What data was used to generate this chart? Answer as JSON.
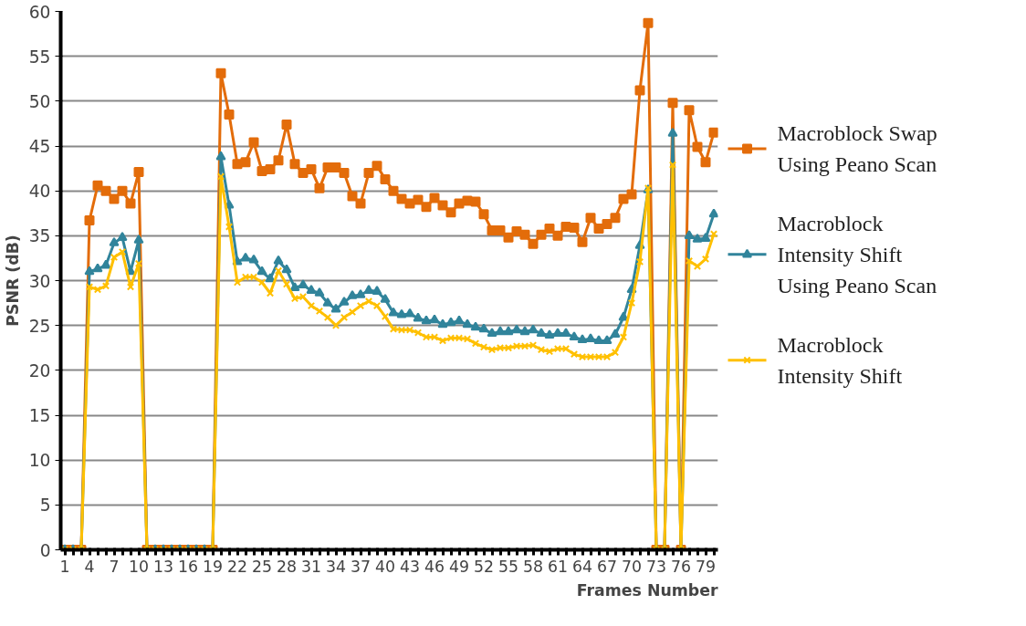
{
  "chart_data": {
    "type": "line",
    "xlabel": "Frames Number",
    "ylabel": "PSNR (dB)",
    "categories": [
      "1",
      null,
      null,
      "4",
      null,
      null,
      "7",
      null,
      null,
      "10",
      null,
      null,
      "13",
      null,
      null,
      "16",
      null,
      null,
      "19",
      null,
      null,
      "22",
      null,
      null,
      "25",
      null,
      null,
      "28",
      null,
      null,
      "31",
      null,
      null,
      "34",
      null,
      null,
      "37",
      null,
      null,
      "40",
      null,
      null,
      "43",
      null,
      null,
      "46",
      null,
      null,
      "49",
      null,
      null,
      "52",
      null,
      null,
      "55",
      null,
      null,
      "58",
      null,
      null,
      "61",
      null,
      null,
      "64",
      null,
      null,
      "67",
      null,
      null,
      "70",
      null,
      null,
      "73",
      null,
      null,
      "76",
      null,
      null,
      "79",
      null
    ],
    "ylim": [
      0,
      60
    ],
    "yticks": [
      0,
      5,
      10,
      15,
      20,
      25,
      30,
      35,
      40,
      45,
      50,
      55,
      60
    ],
    "grid": "y",
    "legend": "right",
    "series": [
      {
        "name": "Macroblock Swap Using Peano Scan",
        "color": "#e36c0a",
        "marker": "square",
        "values": [
          0,
          0,
          0,
          36.7,
          40.6,
          40.0,
          39.1,
          40.0,
          38.6,
          42.1,
          0,
          0,
          0,
          0,
          0,
          0,
          0,
          0,
          0,
          53.1,
          48.5,
          43.0,
          43.2,
          45.4,
          42.2,
          42.4,
          43.4,
          47.4,
          43.0,
          42.0,
          42.4,
          40.3,
          42.6,
          42.6,
          42.0,
          39.4,
          38.6,
          42.0,
          42.8,
          41.3,
          40.0,
          39.1,
          38.6,
          39.0,
          38.2,
          39.2,
          38.4,
          37.6,
          38.6,
          38.9,
          38.8,
          37.4,
          35.6,
          35.6,
          34.8,
          35.5,
          35.1,
          34.1,
          35.1,
          35.8,
          35.0,
          36.0,
          35.9,
          34.3,
          37.0,
          35.8,
          36.3,
          37.0,
          39.1,
          39.6,
          51.2,
          58.7,
          0,
          0,
          49.8,
          0,
          49.0,
          44.9,
          43.2,
          46.5
        ]
      },
      {
        "name": "Macroblock Intensity Shift Using Peano Scan",
        "color": "#31849b",
        "marker": "triangle",
        "values": [
          0,
          0,
          0,
          31.0,
          31.3,
          31.7,
          34.2,
          34.8,
          31.0,
          34.5,
          0,
          0,
          0,
          0,
          0,
          0,
          0,
          0,
          0,
          43.8,
          38.4,
          32.1,
          32.5,
          32.3,
          31.0,
          30.2,
          32.2,
          31.2,
          29.2,
          29.5,
          28.9,
          28.6,
          27.5,
          26.8,
          27.6,
          28.3,
          28.4,
          28.9,
          28.8,
          27.9,
          26.4,
          26.2,
          26.3,
          25.8,
          25.5,
          25.6,
          25.1,
          25.3,
          25.5,
          25.1,
          24.8,
          24.6,
          24.1,
          24.3,
          24.3,
          24.5,
          24.3,
          24.5,
          24.1,
          23.9,
          24.1,
          24.1,
          23.7,
          23.4,
          23.5,
          23.3,
          23.3,
          24.0,
          25.9,
          29.0,
          33.9,
          40.1,
          0,
          0,
          46.4,
          0,
          35.0,
          34.6,
          34.7,
          37.4
        ]
      },
      {
        "name": "Macroblock Intensity Shift",
        "color": "#ffc000",
        "marker": "cross",
        "values": [
          0,
          0,
          0,
          29.3,
          29.0,
          29.4,
          32.6,
          33.2,
          29.3,
          31.9,
          0,
          0,
          0,
          0,
          0,
          0,
          0,
          0,
          0,
          41.6,
          36.0,
          29.8,
          30.4,
          30.4,
          29.8,
          28.6,
          31.1,
          29.6,
          28.0,
          28.2,
          27.2,
          26.6,
          25.9,
          25.0,
          25.9,
          26.5,
          27.2,
          27.7,
          27.2,
          26.0,
          24.6,
          24.5,
          24.5,
          24.2,
          23.7,
          23.7,
          23.3,
          23.6,
          23.6,
          23.5,
          23.0,
          22.6,
          22.3,
          22.5,
          22.5,
          22.7,
          22.7,
          22.8,
          22.3,
          22.1,
          22.4,
          22.4,
          21.8,
          21.5,
          21.5,
          21.5,
          21.5,
          22.0,
          23.7,
          27.5,
          32.1,
          40.3,
          0,
          0,
          42.9,
          0,
          32.2,
          31.6,
          32.4,
          35.2
        ]
      }
    ]
  }
}
